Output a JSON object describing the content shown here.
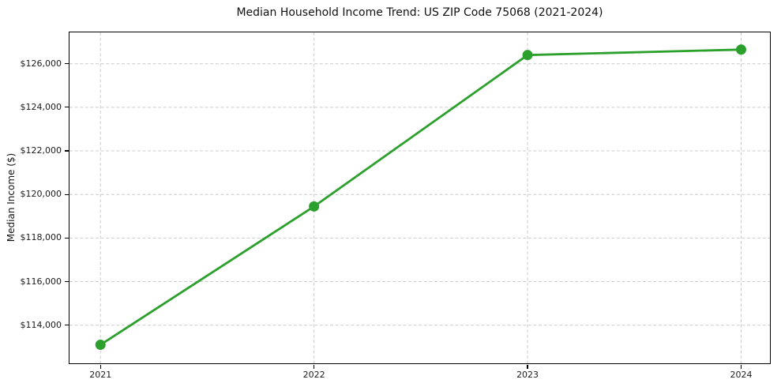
{
  "chart_data": {
    "type": "line",
    "title": "Median Household Income Trend: US ZIP Code 75068 (2021-2024)",
    "xlabel": "",
    "ylabel": "Median Income ($)",
    "x": [
      2021,
      2022,
      2023,
      2024
    ],
    "x_tick_labels": [
      "2021",
      "2022",
      "2023",
      "2024"
    ],
    "series": [
      {
        "color": "#2ca02c",
        "values": [
          113100,
          119450,
          126400,
          126650
        ]
      }
    ],
    "y_ticks": [
      114000,
      116000,
      118000,
      120000,
      122000,
      124000,
      126000
    ],
    "y_tick_labels": [
      "$114,000",
      "$116,000",
      "$118,000",
      "$120,000",
      "$122,000",
      "$124,000",
      "$126,000"
    ],
    "xlim": [
      2020.855,
      2024.135
    ],
    "ylim": [
      112250,
      127440
    ],
    "grid": true,
    "grid_style": "dashed",
    "grid_color": "#cccccc",
    "axis_color": "#000000",
    "text_color": "#1a1a1a",
    "background": "#ffffff",
    "legend": "none",
    "marker": "circle"
  }
}
